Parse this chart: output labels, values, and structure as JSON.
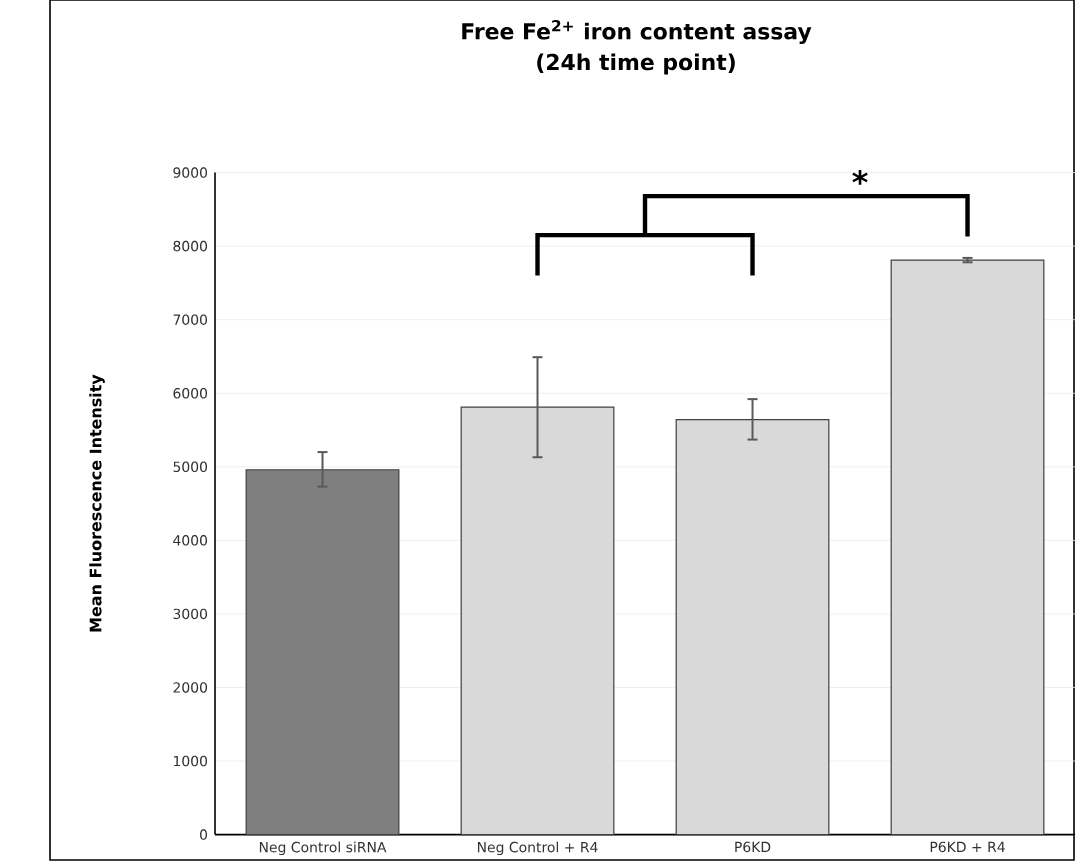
{
  "chart_data": {
    "type": "bar",
    "title": "Free Fe$^{2+}$ iron content assay",
    "subtitle": "(24h time point)",
    "ylabel": "Mean Fluorescence Intensity",
    "categories": [
      "Neg Control siRNA",
      "Neg Control + R4",
      "P6KD",
      "P6KD + R4"
    ],
    "values": [
      4960,
      5810,
      5640,
      7810
    ],
    "colors": [
      "#7f7f7f",
      "#d9d9d9",
      "#d9d9d9",
      "#d9d9d9"
    ],
    "errors": [
      [
        4730,
        5200
      ],
      [
        5130,
        6490
      ],
      [
        5370,
        5920
      ],
      [
        7780,
        7840
      ]
    ],
    "ylim": [
      0,
      9000
    ],
    "yticks": [
      0,
      1000,
      2000,
      3000,
      4000,
      5000,
      6000,
      7000,
      8000,
      9000
    ],
    "grid": "y",
    "annotations": [
      "*"
    ]
  }
}
